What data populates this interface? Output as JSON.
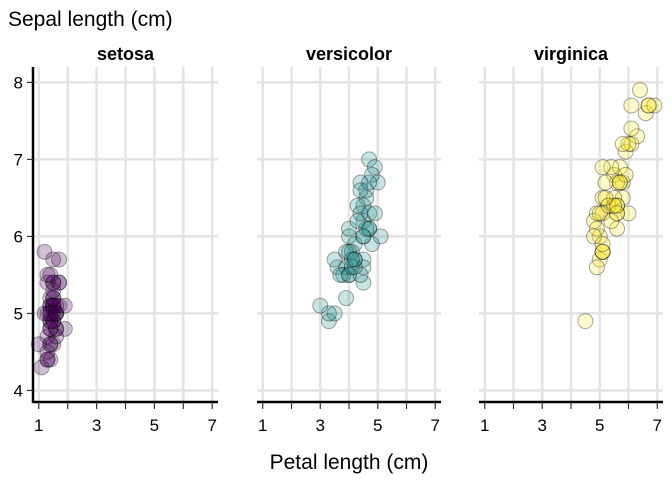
{
  "chart_data": {
    "type": "scatter",
    "ylabel": "Sepal length (cm)",
    "xlabel": "Petal length (cm)",
    "xlim": [
      0.8,
      7.2
    ],
    "ylim": [
      3.85,
      8.2
    ],
    "x_ticks": [
      1,
      3,
      5,
      7
    ],
    "y_ticks": [
      4,
      5,
      6,
      7,
      8
    ],
    "grid": true,
    "facets": [
      {
        "name": "setosa",
        "color": "#440154",
        "points": [
          [
            1.4,
            5.1
          ],
          [
            1.4,
            4.9
          ],
          [
            1.3,
            4.7
          ],
          [
            1.5,
            4.6
          ],
          [
            1.4,
            5.0
          ],
          [
            1.7,
            5.4
          ],
          [
            1.4,
            4.6
          ],
          [
            1.5,
            5.0
          ],
          [
            1.4,
            4.4
          ],
          [
            1.5,
            4.9
          ],
          [
            1.5,
            5.4
          ],
          [
            1.6,
            4.8
          ],
          [
            1.4,
            4.8
          ],
          [
            1.1,
            4.3
          ],
          [
            1.2,
            5.8
          ],
          [
            1.5,
            5.7
          ],
          [
            1.3,
            5.4
          ],
          [
            1.4,
            5.1
          ],
          [
            1.7,
            5.7
          ],
          [
            1.5,
            5.1
          ],
          [
            1.7,
            5.4
          ],
          [
            1.5,
            5.1
          ],
          [
            1.0,
            4.6
          ],
          [
            1.7,
            5.1
          ],
          [
            1.9,
            4.8
          ],
          [
            1.6,
            5.0
          ],
          [
            1.6,
            5.0
          ],
          [
            1.5,
            5.2
          ],
          [
            1.4,
            5.2
          ],
          [
            1.6,
            4.7
          ],
          [
            1.6,
            4.8
          ],
          [
            1.5,
            5.4
          ],
          [
            1.5,
            5.2
          ],
          [
            1.4,
            5.5
          ],
          [
            1.5,
            4.9
          ],
          [
            1.2,
            5.0
          ],
          [
            1.3,
            5.5
          ],
          [
            1.4,
            4.9
          ],
          [
            1.3,
            4.4
          ],
          [
            1.5,
            5.1
          ],
          [
            1.3,
            5.0
          ],
          [
            1.3,
            4.5
          ],
          [
            1.3,
            4.4
          ],
          [
            1.6,
            5.0
          ],
          [
            1.9,
            5.1
          ],
          [
            1.4,
            4.8
          ],
          [
            1.6,
            5.1
          ],
          [
            1.4,
            4.6
          ],
          [
            1.5,
            5.3
          ],
          [
            1.4,
            5.0
          ]
        ]
      },
      {
        "name": "versicolor",
        "color": "#21908C",
        "points": [
          [
            4.7,
            7.0
          ],
          [
            4.5,
            6.4
          ],
          [
            4.9,
            6.9
          ],
          [
            4.0,
            5.5
          ],
          [
            4.6,
            6.5
          ],
          [
            4.5,
            5.7
          ],
          [
            4.7,
            6.3
          ],
          [
            3.3,
            4.9
          ],
          [
            4.6,
            6.6
          ],
          [
            3.9,
            5.2
          ],
          [
            3.5,
            5.0
          ],
          [
            4.2,
            5.9
          ],
          [
            4.0,
            6.0
          ],
          [
            4.7,
            6.1
          ],
          [
            3.6,
            5.6
          ],
          [
            4.4,
            6.7
          ],
          [
            4.5,
            5.6
          ],
          [
            4.1,
            5.8
          ],
          [
            4.5,
            6.2
          ],
          [
            3.9,
            5.6
          ],
          [
            4.8,
            5.9
          ],
          [
            4.0,
            6.1
          ],
          [
            4.9,
            6.3
          ],
          [
            4.7,
            6.1
          ],
          [
            4.3,
            6.4
          ],
          [
            4.4,
            6.6
          ],
          [
            4.8,
            6.8
          ],
          [
            5.0,
            6.7
          ],
          [
            4.5,
            6.0
          ],
          [
            3.5,
            5.7
          ],
          [
            3.8,
            5.5
          ],
          [
            3.7,
            5.5
          ],
          [
            3.9,
            5.8
          ],
          [
            5.1,
            6.0
          ],
          [
            4.5,
            5.4
          ],
          [
            4.5,
            6.0
          ],
          [
            4.7,
            6.7
          ],
          [
            4.4,
            6.3
          ],
          [
            4.1,
            5.6
          ],
          [
            4.0,
            5.5
          ],
          [
            4.4,
            5.5
          ],
          [
            4.6,
            6.1
          ],
          [
            4.0,
            5.8
          ],
          [
            3.3,
            5.0
          ],
          [
            4.2,
            5.6
          ],
          [
            4.2,
            5.7
          ],
          [
            4.2,
            5.7
          ],
          [
            4.3,
            6.2
          ],
          [
            3.0,
            5.1
          ],
          [
            4.1,
            5.7
          ]
        ]
      },
      {
        "name": "virginica",
        "color": "#FDE725",
        "points": [
          [
            6.0,
            6.3
          ],
          [
            5.1,
            5.8
          ],
          [
            5.9,
            7.1
          ],
          [
            5.6,
            6.3
          ],
          [
            5.8,
            6.5
          ],
          [
            6.6,
            7.6
          ],
          [
            4.5,
            4.9
          ],
          [
            6.3,
            7.3
          ],
          [
            5.8,
            6.7
          ],
          [
            6.1,
            7.2
          ],
          [
            5.1,
            6.5
          ],
          [
            5.3,
            6.4
          ],
          [
            5.5,
            6.8
          ],
          [
            5.0,
            5.7
          ],
          [
            5.1,
            5.8
          ],
          [
            5.3,
            6.4
          ],
          [
            5.5,
            6.5
          ],
          [
            6.7,
            7.7
          ],
          [
            6.9,
            7.7
          ],
          [
            5.0,
            6.0
          ],
          [
            5.7,
            6.9
          ],
          [
            4.9,
            5.6
          ],
          [
            6.7,
            7.7
          ],
          [
            4.9,
            6.3
          ],
          [
            5.7,
            6.7
          ],
          [
            6.0,
            7.2
          ],
          [
            4.8,
            6.2
          ],
          [
            4.9,
            6.1
          ],
          [
            5.6,
            6.4
          ],
          [
            5.8,
            7.2
          ],
          [
            6.1,
            7.4
          ],
          [
            6.4,
            7.9
          ],
          [
            5.6,
            6.4
          ],
          [
            5.1,
            6.3
          ],
          [
            5.6,
            6.1
          ],
          [
            6.1,
            7.7
          ],
          [
            5.6,
            6.3
          ],
          [
            5.5,
            6.4
          ],
          [
            4.8,
            6.0
          ],
          [
            5.4,
            6.9
          ],
          [
            5.6,
            6.7
          ],
          [
            5.1,
            6.9
          ],
          [
            5.1,
            5.8
          ],
          [
            5.9,
            6.8
          ],
          [
            5.7,
            6.7
          ],
          [
            5.2,
            6.7
          ],
          [
            5.0,
            6.3
          ],
          [
            5.2,
            6.5
          ],
          [
            5.4,
            6.2
          ],
          [
            5.1,
            5.9
          ]
        ]
      }
    ]
  }
}
